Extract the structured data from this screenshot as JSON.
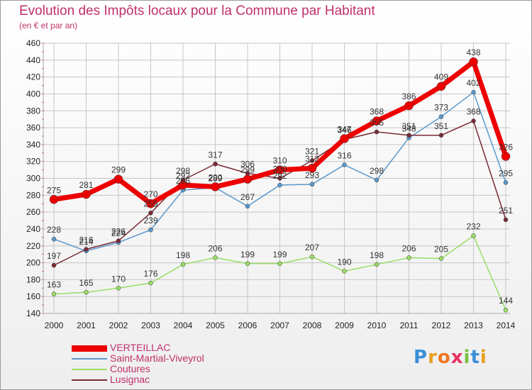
{
  "title": "Evolution des Impôts locaux pour la Commune par Habitant",
  "subtitle": "(en € et par an)",
  "logo_text": "Proxiti",
  "colors": {
    "title": "#c0306a",
    "VERTEILLAC": "#ee0000",
    "Saint-Martial-Viveyrol": "#5b98cc",
    "Coutures": "#99dd66",
    "Lusignac": "#7a2a35",
    "grid": "#c6c6c6",
    "axis_tick": "#e04060"
  },
  "chart_data": {
    "type": "line",
    "title": "Evolution des Impôts locaux pour la Commune par Habitant",
    "subtitle": "(en € et par an)",
    "xlabel": "",
    "ylabel": "",
    "x": [
      "2000",
      "2001",
      "2002",
      "2003",
      "2004",
      "2005",
      "2006",
      "2007",
      "2008",
      "2009",
      "2010",
      "2011",
      "2012",
      "2013",
      "2014"
    ],
    "ylim": [
      140,
      460
    ],
    "yticks": [
      140,
      160,
      180,
      200,
      220,
      240,
      260,
      280,
      300,
      320,
      340,
      360,
      380,
      400,
      420,
      440,
      460
    ],
    "grid": true,
    "legend_position": "bottom-left",
    "series": [
      {
        "name": "VERTEILLAC",
        "values": [
          275,
          281,
          299,
          270,
          292,
          290,
          299,
          310,
          312,
          347,
          368,
          386,
          409,
          438,
          326
        ]
      },
      {
        "name": "Saint-Martial-Viveyrol",
        "values": [
          228,
          214,
          224,
          239,
          286,
          289,
          267,
          292,
          293,
          316,
          298,
          348,
          373,
          402,
          295
        ]
      },
      {
        "name": "Coutures",
        "values": [
          163,
          165,
          170,
          176,
          198,
          206,
          199,
          199,
          207,
          190,
          198,
          206,
          205,
          232,
          144
        ]
      },
      {
        "name": "Lusignac",
        "values": [
          197,
          216,
          226,
          259,
          298,
          317,
          306,
          300,
          321,
          346,
          355,
          351,
          351,
          368,
          251
        ]
      }
    ]
  }
}
